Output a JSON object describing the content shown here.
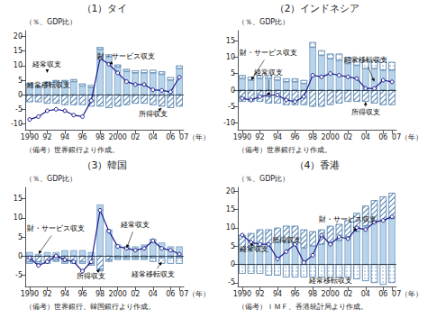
{
  "chart_data": [
    {
      "type": "bar",
      "title": "（1）タイ",
      "ylabel": "（％、GDP比）",
      "note": "（備考）世界銀行より作成。",
      "categories": [
        "1990",
        null,
        "92",
        null,
        "94",
        null,
        "96",
        null,
        "98",
        null,
        "2000",
        null,
        "02",
        null,
        "04",
        null,
        "06",
        "07（年）"
      ],
      "ylim": [
        -12,
        22
      ],
      "yticks": [
        -10,
        -5,
        0,
        5,
        10,
        15,
        20
      ],
      "grid": false,
      "stacked": true,
      "series": [
        {
          "type": "bar",
          "color": "#b8d4ea",
          "values": [
            3.5,
            2.5,
            4.0,
            4.5,
            4.5,
            4.5,
            3.0,
            2.5,
            15.5,
            13.0,
            9.5,
            8.0,
            7.5,
            7.5,
            7.5,
            7.0,
            5.0,
            9.0
          ]
        },
        {
          "type": "bar",
          "color": "#ffffff",
          "values": [
            -2.5,
            -2.5,
            -3.0,
            -3.0,
            -3.5,
            -3.5,
            -3.5,
            -4.0,
            -4.0,
            -4.5,
            -4.0,
            -3.5,
            -3.0,
            -3.0,
            -3.5,
            -4.0,
            -4.5,
            -4.0
          ]
        },
        {
          "type": "bar",
          "color": "#ffffff",
          "values": [
            0.5,
            0.5,
            0.5,
            0.5,
            0.5,
            0.8,
            0.8,
            0.8,
            0.8,
            0.8,
            0.8,
            0.8,
            0.8,
            1.0,
            1.0,
            1.0,
            1.0,
            1.0
          ]
        },
        {
          "type": "line",
          "color": "#1a1a8c",
          "marker": "circle",
          "values": [
            -8.5,
            -7.5,
            -5.5,
            -5.0,
            -5.5,
            -7.0,
            -7.5,
            -2.0,
            12.5,
            10.5,
            7.5,
            4.5,
            3.5,
            3.5,
            1.7,
            1.5,
            1.0,
            6.0
          ]
        }
      ],
      "annotations": [
        {
          "text": "経常収支",
          "xy": [
            2,
            7.5
          ],
          "xytext": [
            2,
            10
          ]
        },
        {
          "text": "財・サービス収支",
          "xy": [
            9,
            10.5
          ],
          "xytext": [
            11,
            13
          ]
        },
        {
          "text": "経常移転収支",
          "xy": [
            3,
            0.8
          ],
          "xytext": [
            2,
            3
          ]
        },
        {
          "text": "所得収支",
          "xy": [
            15,
            -4.5
          ],
          "xytext": [
            14,
            -7
          ]
        }
      ]
    },
    {
      "type": "bar",
      "title": "（2）インドネシア",
      "ylabel": "（％、GDP比）",
      "note": "（備考）世界銀行より作成。",
      "categories": [
        "1990",
        null,
        "92",
        null,
        "94",
        null,
        "96",
        null,
        "98",
        null,
        "2000",
        null,
        "02",
        null,
        "04",
        null,
        "06",
        "07（年）"
      ],
      "ylim": [
        -12,
        18
      ],
      "yticks": [
        -10,
        -5,
        0,
        5,
        10,
        15
      ],
      "grid": false,
      "stacked": true,
      "series": [
        {
          "type": "bar",
          "color": "#b8d4ea",
          "values": [
            3.5,
            3.0,
            3.5,
            3.5,
            3.0,
            2.5,
            2.5,
            2.0,
            13.0,
            10.5,
            9.5,
            9.0,
            8.0,
            7.5,
            6.5,
            6.5,
            6.0,
            6.0
          ]
        },
        {
          "type": "bar",
          "color": "#ffffff",
          "values": [
            -3.5,
            -3.5,
            -3.5,
            -4.0,
            -4.0,
            -4.5,
            -4.5,
            -4.5,
            -5.0,
            -5.0,
            -4.5,
            -4.0,
            -3.5,
            -3.5,
            -3.5,
            -4.0,
            -4.5,
            -4.5
          ]
        },
        {
          "type": "bar",
          "color": "#ffffff",
          "values": [
            1.0,
            1.0,
            1.0,
            1.0,
            1.0,
            1.0,
            1.0,
            1.0,
            1.5,
            1.5,
            1.5,
            2.0,
            2.0,
            2.0,
            2.5,
            2.5,
            3.5,
            2.5
          ]
        },
        {
          "type": "line",
          "color": "#1a1a8c",
          "marker": "circle",
          "values": [
            -2.5,
            -3.0,
            -2.0,
            -1.5,
            -1.5,
            -3.0,
            -3.5,
            -2.0,
            4.5,
            4.0,
            5.0,
            4.5,
            4.0,
            3.5,
            0.5,
            0.5,
            3.0,
            2.5
          ]
        }
      ],
      "annotations": [
        {
          "text": "経常収支",
          "xy": [
            3,
            -2.0
          ],
          "xytext": [
            3,
            5
          ]
        },
        {
          "text": "財・サービス収支",
          "xy": [
            1,
            3.0
          ],
          "xytext": [
            0,
            11
          ]
        },
        {
          "text": "経常移転収支",
          "xy": [
            15,
            2.5
          ],
          "xytext": [
            14,
            9
          ]
        },
        {
          "text": "所得収支",
          "xy": [
            14,
            -3.5
          ],
          "xytext": [
            14,
            -7
          ]
        }
      ]
    },
    {
      "type": "bar",
      "title": "（3）韓国",
      "ylabel": "（％、GDP比）",
      "note": "（備考）世界銀行、韓国銀行より作成。",
      "categories": [
        "1990",
        null,
        "92",
        null,
        "94",
        null,
        "96",
        null,
        "98",
        null,
        "2000",
        null,
        "02",
        null,
        "04",
        null,
        "06",
        "07（年）"
      ],
      "ylim": [
        -8,
        18
      ],
      "yticks": [
        -5,
        0,
        5,
        10,
        15
      ],
      "grid": false,
      "stacked": true,
      "series": [
        {
          "type": "bar",
          "color": "#b8d4ea",
          "values": [
            1.0,
            0.5,
            1.0,
            1.0,
            1.5,
            1.5,
            1.5,
            1.0,
            13.5,
            7.0,
            3.0,
            2.5,
            2.5,
            3.0,
            4.5,
            3.5,
            2.5,
            2.5
          ]
        },
        {
          "type": "bar",
          "color": "#ffffff",
          "values": [
            -1.5,
            -1.5,
            -1.5,
            -1.0,
            -1.5,
            -1.5,
            -1.5,
            -2.0,
            -3.5,
            -1.0,
            -0.5,
            -0.5,
            -0.5,
            -0.5,
            -0.5,
            -0.5,
            -0.5,
            -0.5
          ]
        },
        {
          "type": "bar",
          "color": "#ffffff",
          "values": [
            -0.5,
            -0.5,
            -0.5,
            -0.5,
            -0.5,
            -0.5,
            -0.5,
            -0.5,
            -0.5,
            -0.5,
            -0.5,
            -0.5,
            -0.5,
            -0.5,
            -1.0,
            -1.5,
            -1.5,
            -1.5
          ]
        },
        {
          "type": "line",
          "color": "#1a1a8c",
          "marker": "circle",
          "values": [
            -0.5,
            -2.5,
            -1.5,
            0.0,
            -1.0,
            -1.5,
            -4.0,
            -1.5,
            12.0,
            6.5,
            2.5,
            2.0,
            1.5,
            2.0,
            4.0,
            2.0,
            1.5,
            0.5
          ]
        }
      ],
      "annotations": [
        {
          "text": "経常収支",
          "xy": [
            11,
            2.0
          ],
          "xytext": [
            12,
            8
          ]
        },
        {
          "text": "財・サービス収支",
          "xy": [
            1,
            0.5
          ],
          "xytext": [
            0,
            7
          ]
        },
        {
          "text": "経常移転収支",
          "xy": [
            15,
            -1.5
          ],
          "xytext": [
            14,
            -5
          ]
        },
        {
          "text": "所得収支",
          "xy": [
            8,
            -3.5
          ],
          "xytext": [
            7,
            -5.5
          ]
        }
      ]
    },
    {
      "type": "bar",
      "title": "（4）香港",
      "ylabel": "（％、GDP比）",
      "note": "（備考）ＩＭＦ、香港統計局より作成。",
      "categories": [
        "1990",
        null,
        "92",
        null,
        "94",
        null,
        "96",
        null,
        "98",
        null,
        "2000",
        null,
        "02",
        null,
        "04",
        null,
        "06",
        "07（年）"
      ],
      "ylim": [
        -6,
        21
      ],
      "yticks": [
        -5,
        0,
        5,
        10,
        15,
        20
      ],
      "grid": false,
      "stacked": true,
      "series": [
        {
          "type": "bar",
          "color": "#b8d4ea",
          "values": [
            4.0,
            4.5,
            5.0,
            5.5,
            6.0,
            6.0,
            5.5,
            4.5,
            5.0,
            5.5,
            6.0,
            6.5,
            7.5,
            9.0,
            10.5,
            11.5,
            12.0,
            12.5
          ]
        },
        {
          "type": "bar",
          "color": "#ffffff",
          "values": [
            4.0,
            4.0,
            4.5,
            4.0,
            4.0,
            4.5,
            5.0,
            5.0,
            4.0,
            4.0,
            4.5,
            4.5,
            4.5,
            5.0,
            5.5,
            6.0,
            6.5,
            7.0
          ]
        },
        {
          "type": "bar",
          "color": "#ffffff",
          "values": [
            -2.5,
            -2.5,
            -2.5,
            -3.0,
            -3.0,
            -3.5,
            -3.5,
            -3.5,
            -3.5,
            -3.5,
            -3.5,
            -3.5,
            -3.5,
            -4.0,
            -4.5,
            -5.0,
            -5.5,
            -5.0
          ]
        },
        {
          "type": "line",
          "color": "#1a1a8c",
          "marker": "circle",
          "values": [
            8.0,
            6.0,
            5.5,
            5.5,
            1.5,
            3.5,
            5.5,
            0.5,
            2.5,
            8.0,
            5.5,
            7.5,
            7.0,
            10.0,
            9.5,
            11.5,
            12.0,
            13.0
          ]
        }
      ],
      "annotations": [
        {
          "text": "経常収支",
          "xy": [
            1,
            6.0
          ],
          "xytext": [
            0,
            4
          ]
        },
        {
          "text": "財・サービス収支",
          "xy": [
            13,
            9.0
          ],
          "xytext": [
            12,
            12
          ]
        },
        {
          "text": "経常移転収支",
          "xy": [
            11,
            -3.5
          ],
          "xytext": [
            10,
            -5
          ]
        },
        {
          "text": "所得収支",
          "xy": [
            6,
            5.0
          ],
          "xytext": [
            5,
            6.5
          ]
        }
      ]
    }
  ]
}
